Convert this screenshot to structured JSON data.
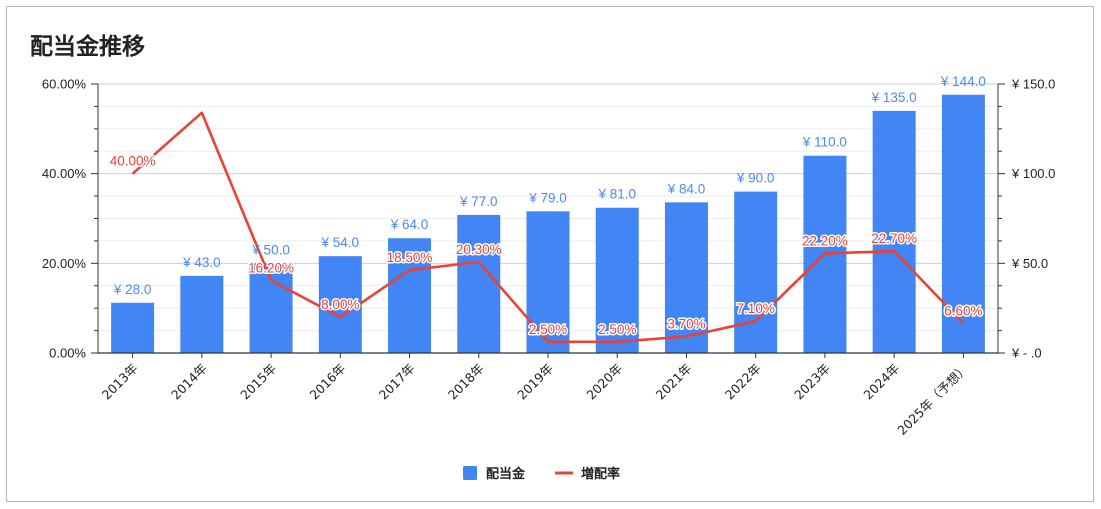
{
  "title": "配当金推移",
  "colors": {
    "bar": "#4285f4",
    "line": "#ea4335",
    "bar_label": "#4a8af4",
    "grid": "#d9d9d9"
  },
  "chart_data": {
    "type": "bar+line",
    "title": "配当金推移",
    "categories": [
      "2013年",
      "2014年",
      "2015年",
      "2016年",
      "2017年",
      "2018年",
      "2019年",
      "2020年",
      "2021年",
      "2022年",
      "2023年",
      "2024年",
      "2025年（予想）"
    ],
    "series": [
      {
        "name": "配当金",
        "type": "bar",
        "axis": "right",
        "values": [
          28.0,
          43.0,
          50.0,
          54.0,
          64.0,
          77.0,
          79.0,
          81.0,
          84.0,
          90.0,
          110.0,
          135.0,
          144.0
        ],
        "labels": [
          "¥ 28.0",
          "¥ 43.0",
          "¥ 50.0",
          "¥ 54.0",
          "¥ 64.0",
          "¥ 77.0",
          "¥ 79.0",
          "¥ 81.0",
          "¥ 84.0",
          "¥ 90.0",
          "¥ 110.0",
          "¥ 135.0",
          "¥ 144.0"
        ]
      },
      {
        "name": "増配率",
        "type": "line",
        "axis": "left",
        "values": [
          40.0,
          53.6,
          16.2,
          8.0,
          18.5,
          20.3,
          2.5,
          2.5,
          3.7,
          7.1,
          22.2,
          22.7,
          6.6
        ],
        "labels": [
          "40.00%",
          "",
          "16.20%",
          "8.00%",
          "18.50%",
          "20.30%",
          "2.50%",
          "2.50%",
          "3.70%",
          "7.10%",
          "22.20%",
          "22.70%",
          "6.60%"
        ]
      }
    ],
    "y_left": {
      "ticks": [
        "0.00%",
        "20.00%",
        "40.00%",
        "60.00%"
      ],
      "range": [
        0,
        60
      ]
    },
    "y_right": {
      "ticks": [
        "¥ -  .0",
        "¥ 50.0",
        "¥ 100.0",
        "¥ 150.0"
      ],
      "range": [
        0,
        150
      ]
    },
    "grid": true,
    "legend": "bottom"
  }
}
